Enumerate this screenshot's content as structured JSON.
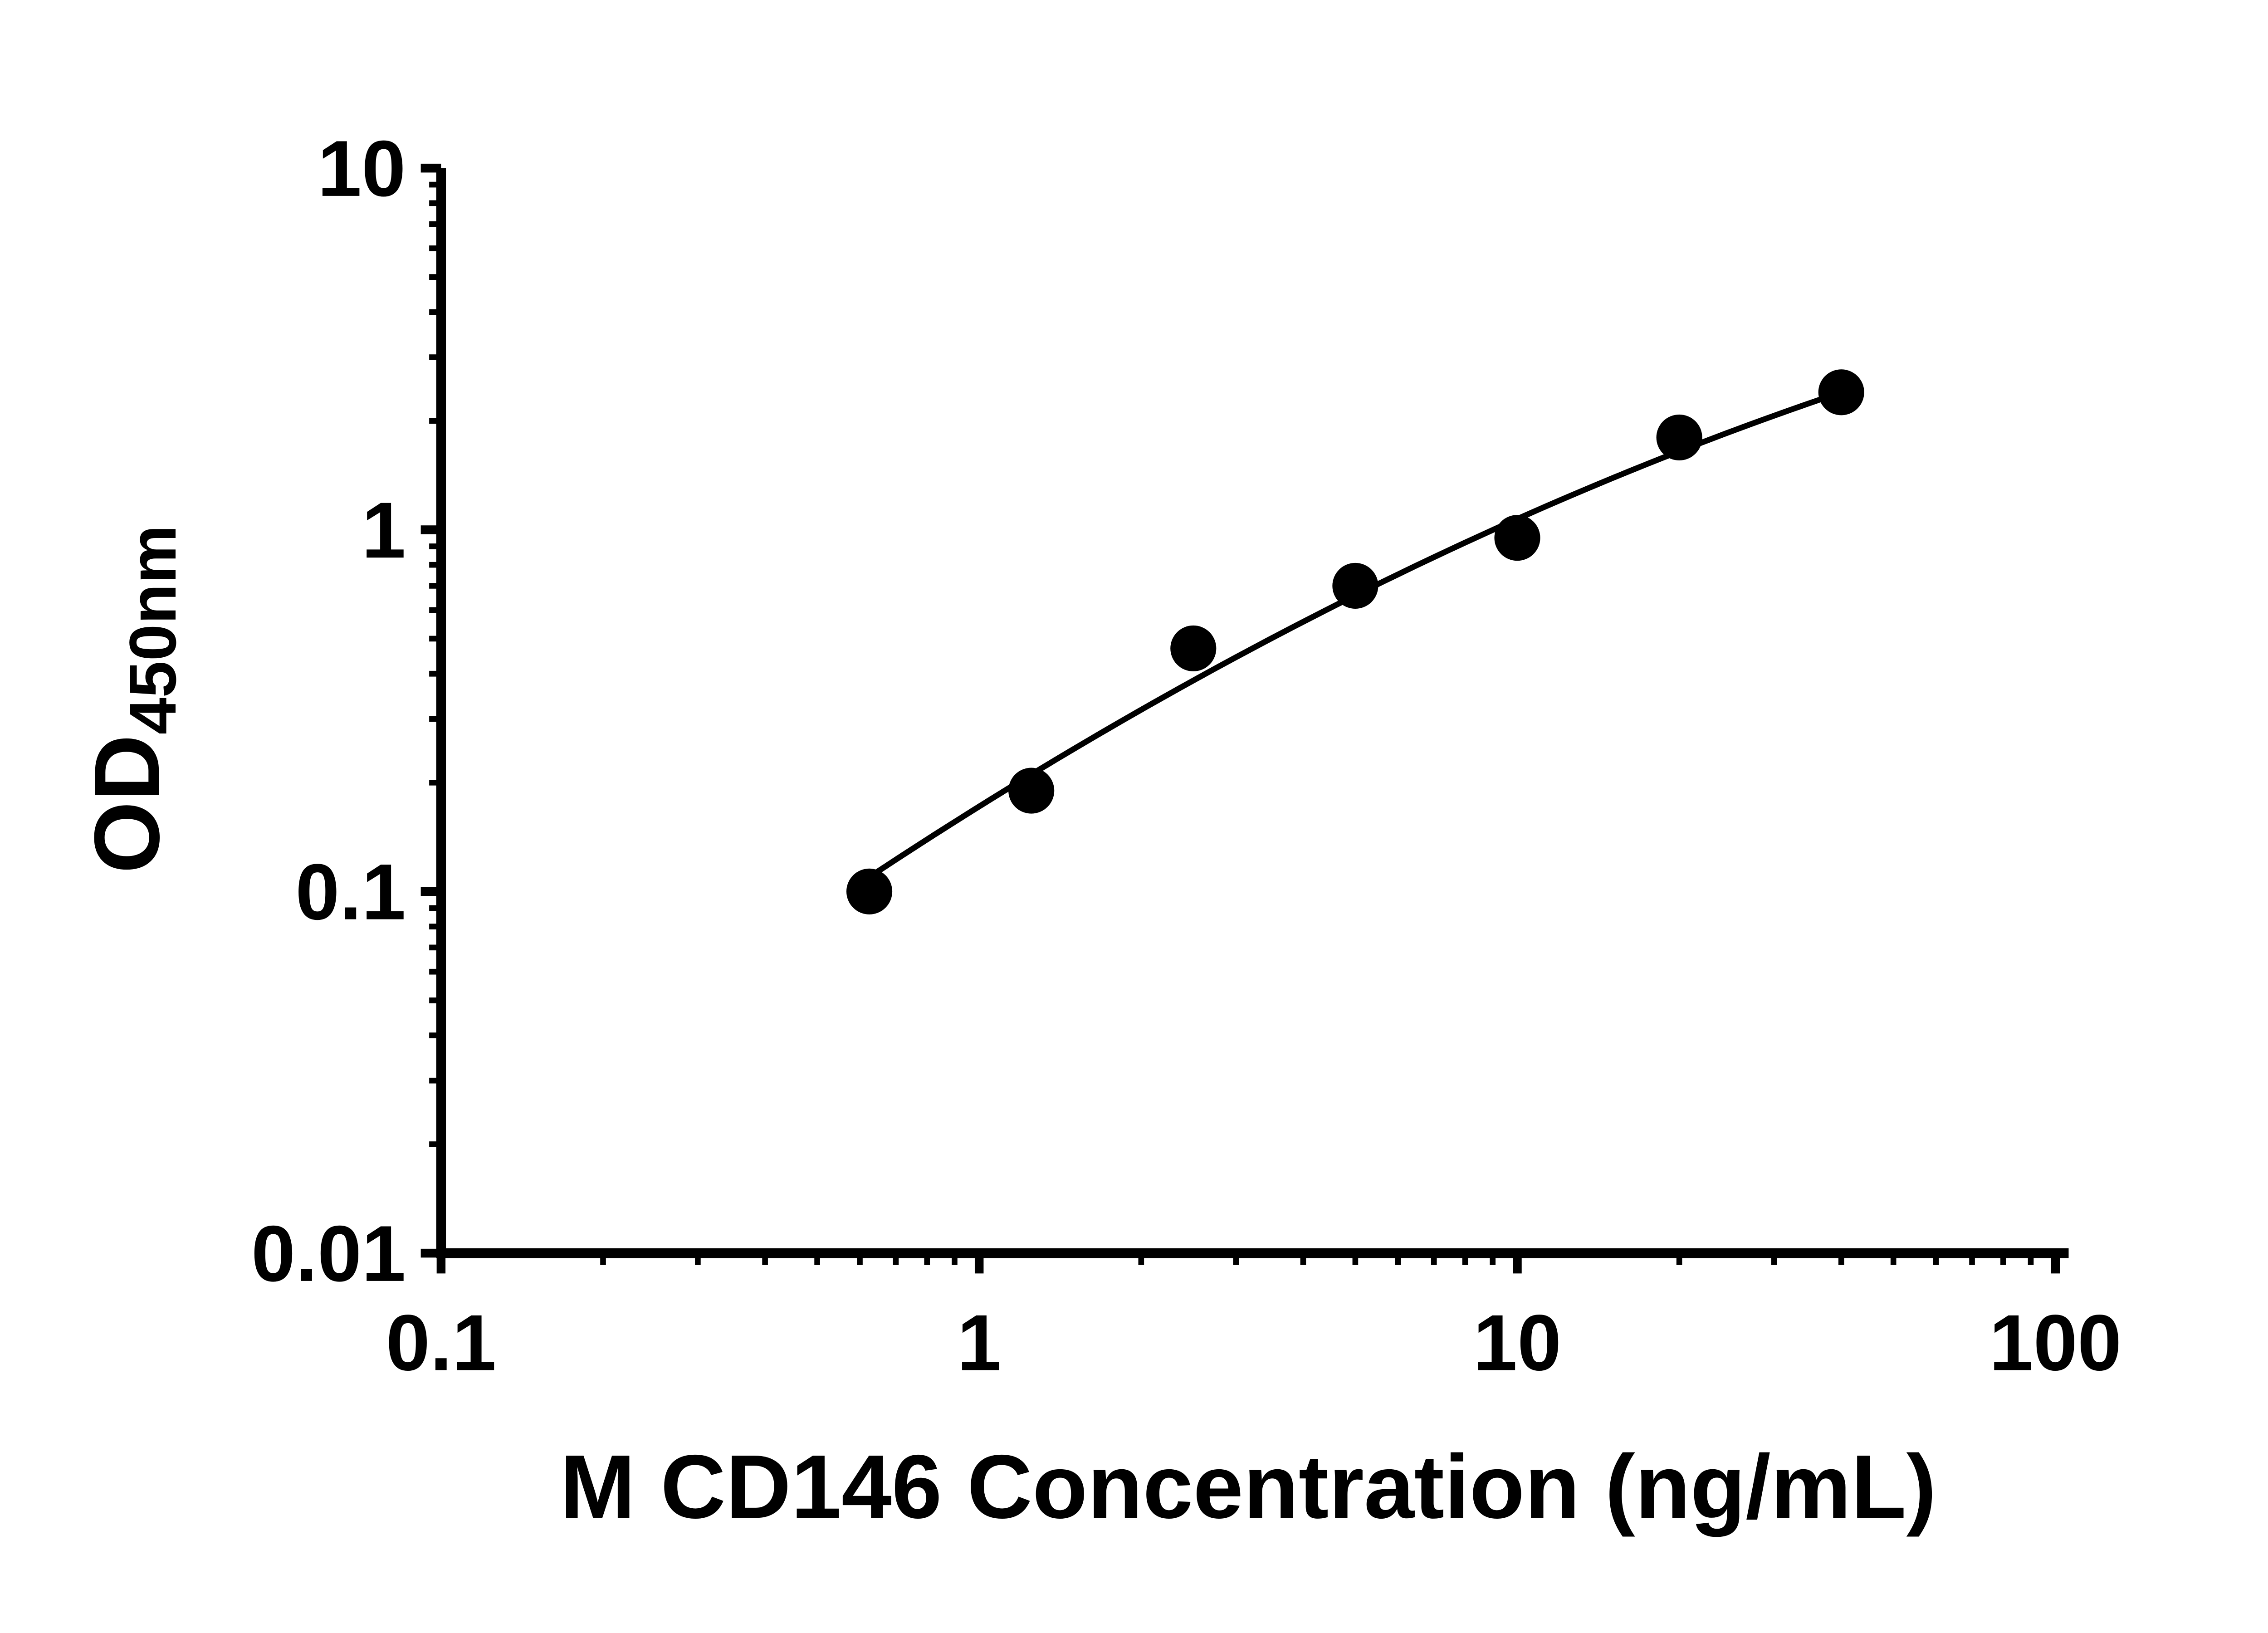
{
  "chart_data": {
    "type": "scatter",
    "title": "",
    "xlabel": "M CD146 Concentration (ng/mL)",
    "ylabel": "OD450nm",
    "ylabel_main": "OD",
    "ylabel_sub": "450nm",
    "x_scale": "log",
    "y_scale": "log",
    "xlim": [
      0.1,
      100
    ],
    "ylim": [
      0.01,
      10
    ],
    "x_ticks": [
      0.1,
      1,
      10,
      100
    ],
    "x_tick_labels": [
      "0.1",
      "1",
      "10",
      "100"
    ],
    "y_ticks": [
      0.01,
      0.1,
      1,
      10
    ],
    "y_tick_labels": [
      "0.01",
      "0.1",
      "1",
      "10"
    ],
    "grid": false,
    "legend": false,
    "series": [
      {
        "marker": "filled-circle",
        "color": "#000000",
        "x": [
          0.625,
          1.25,
          2.5,
          5,
          10,
          20,
          40
        ],
        "y": [
          0.1,
          0.19,
          0.47,
          0.7,
          0.95,
          1.8,
          2.4
        ]
      }
    ],
    "fit_curve": {
      "model": "log10(y) = a + b*u + c*u^2 where u = log10(x)",
      "coeffs": [
        -0.765,
        0.9283,
        -0.1333
      ],
      "x_range": [
        0.6,
        40
      ],
      "color": "#000000"
    },
    "style": {
      "axis_color": "#000000",
      "marker_color": "#000000",
      "line_color": "#000000",
      "background": "#ffffff"
    }
  }
}
